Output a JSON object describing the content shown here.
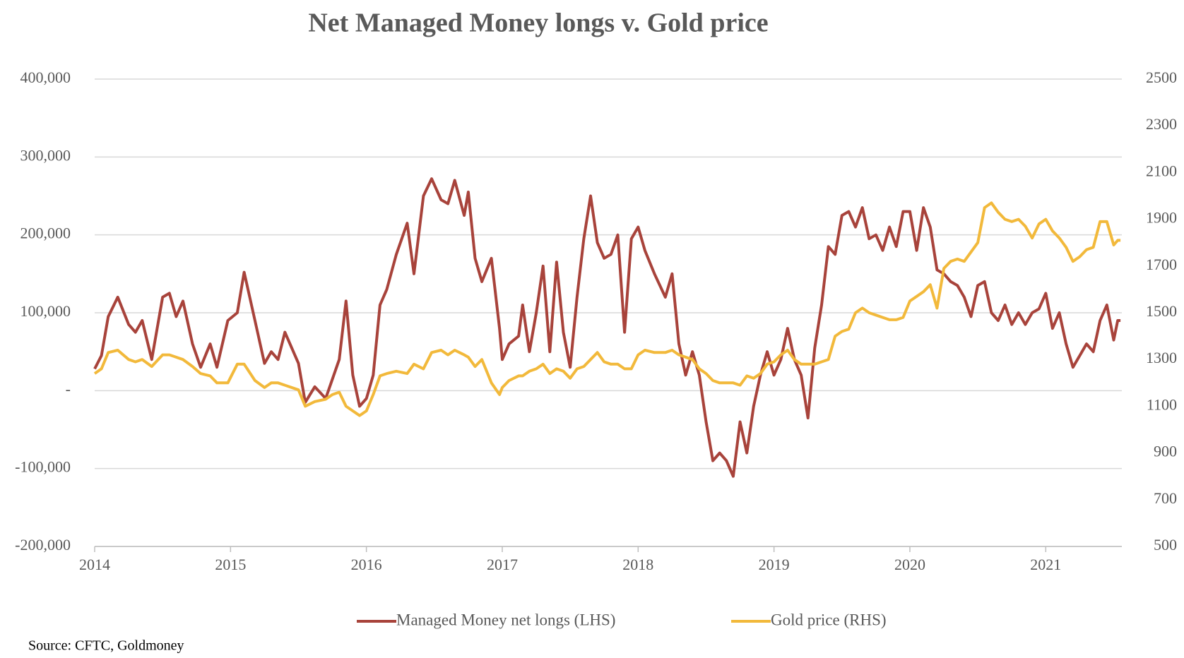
{
  "chart_data": {
    "type": "line",
    "title": "Net Managed Money longs v. Gold price",
    "source": "Source: CFTC, Goldmoney",
    "x": [
      2014,
      2014.05,
      2014.1,
      2014.17,
      2014.25,
      2014.3,
      2014.35,
      2014.42,
      2014.5,
      2014.55,
      2014.6,
      2014.65,
      2014.72,
      2014.78,
      2014.85,
      2014.9,
      2014.98,
      2015.05,
      2015.1,
      2015.18,
      2015.25,
      2015.3,
      2015.35,
      2015.4,
      2015.5,
      2015.55,
      2015.62,
      2015.7,
      2015.75,
      2015.8,
      2015.85,
      2015.9,
      2015.95,
      2016,
      2016.05,
      2016.1,
      2016.15,
      2016.22,
      2016.3,
      2016.35,
      2016.42,
      2016.48,
      2016.55,
      2016.6,
      2016.65,
      2016.72,
      2016.75,
      2016.8,
      2016.85,
      2016.92,
      2016.98,
      2017,
      2017.05,
      2017.12,
      2017.15,
      2017.2,
      2017.25,
      2017.3,
      2017.35,
      2017.4,
      2017.45,
      2017.5,
      2017.55,
      2017.6,
      2017.65,
      2017.7,
      2017.75,
      2017.8,
      2017.85,
      2017.9,
      2017.95,
      2018,
      2018.05,
      2018.12,
      2018.2,
      2018.25,
      2018.3,
      2018.35,
      2018.4,
      2018.45,
      2018.5,
      2018.55,
      2018.6,
      2018.65,
      2018.7,
      2018.75,
      2018.8,
      2018.85,
      2018.9,
      2018.95,
      2019,
      2019.05,
      2019.1,
      2019.15,
      2019.2,
      2019.25,
      2019.3,
      2019.35,
      2019.4,
      2019.45,
      2019.5,
      2019.55,
      2019.6,
      2019.65,
      2019.7,
      2019.75,
      2019.8,
      2019.85,
      2019.9,
      2019.95,
      2020,
      2020.05,
      2020.1,
      2020.15,
      2020.2,
      2020.25,
      2020.3,
      2020.35,
      2020.4,
      2020.45,
      2020.5,
      2020.55,
      2020.6,
      2020.65,
      2020.7,
      2020.75,
      2020.8,
      2020.85,
      2020.9,
      2020.95,
      2021,
      2021.05,
      2021.1,
      2021.15,
      2021.2,
      2021.25,
      2021.3,
      2021.35,
      2021.4,
      2021.45,
      2021.5,
      2021.53,
      2021.55
    ],
    "series": [
      {
        "name": "Managed Money net longs (LHS)",
        "color": "#a8433b",
        "axis": "y",
        "values": [
          28000,
          45000,
          95000,
          120000,
          85000,
          75000,
          90000,
          40000,
          120000,
          125000,
          95000,
          115000,
          60000,
          30000,
          60000,
          30000,
          90000,
          100000,
          152000,
          90000,
          35000,
          50000,
          40000,
          75000,
          35000,
          -15000,
          5000,
          -10000,
          15000,
          40000,
          115000,
          20000,
          -20000,
          -10000,
          20000,
          110000,
          130000,
          175000,
          215000,
          150000,
          250000,
          272000,
          245000,
          240000,
          270000,
          225000,
          255000,
          170000,
          140000,
          170000,
          80000,
          40000,
          60000,
          70000,
          110000,
          50000,
          100000,
          160000,
          50000,
          165000,
          75000,
          30000,
          120000,
          195000,
          250000,
          190000,
          170000,
          175000,
          200000,
          75000,
          195000,
          210000,
          180000,
          150000,
          120000,
          150000,
          60000,
          20000,
          50000,
          20000,
          -40000,
          -90000,
          -80000,
          -90000,
          -110000,
          -40000,
          -80000,
          -20000,
          20000,
          50000,
          20000,
          40000,
          80000,
          40000,
          20000,
          -35000,
          55000,
          110000,
          185000,
          175000,
          225000,
          230000,
          210000,
          235000,
          195000,
          200000,
          180000,
          210000,
          185000,
          230000,
          230000,
          180000,
          235000,
          210000,
          155000,
          150000,
          140000,
          135000,
          120000,
          95000,
          135000,
          140000,
          100000,
          90000,
          110000,
          85000,
          100000,
          85000,
          100000,
          105000,
          125000,
          80000,
          100000,
          60000,
          30000,
          45000,
          60000,
          50000,
          90000,
          110000,
          65000,
          90000,
          90000
        ]
      },
      {
        "name": "Gold price (RHS)",
        "color": "#f2b93b",
        "axis": "y2",
        "values": [
          1240,
          1260,
          1330,
          1340,
          1300,
          1290,
          1300,
          1270,
          1320,
          1320,
          1310,
          1300,
          1270,
          1240,
          1230,
          1200,
          1200,
          1280,
          1280,
          1210,
          1180,
          1200,
          1200,
          1190,
          1170,
          1100,
          1120,
          1130,
          1150,
          1160,
          1100,
          1080,
          1060,
          1080,
          1150,
          1230,
          1240,
          1250,
          1240,
          1280,
          1260,
          1330,
          1340,
          1320,
          1340,
          1320,
          1310,
          1270,
          1300,
          1200,
          1150,
          1180,
          1210,
          1230,
          1230,
          1250,
          1260,
          1280,
          1240,
          1260,
          1250,
          1220,
          1260,
          1270,
          1300,
          1330,
          1290,
          1280,
          1280,
          1260,
          1260,
          1320,
          1340,
          1330,
          1330,
          1340,
          1320,
          1310,
          1300,
          1260,
          1240,
          1210,
          1200,
          1200,
          1200,
          1190,
          1230,
          1220,
          1240,
          1280,
          1290,
          1320,
          1340,
          1300,
          1280,
          1280,
          1280,
          1290,
          1300,
          1400,
          1420,
          1430,
          1500,
          1520,
          1500,
          1490,
          1480,
          1470,
          1470,
          1480,
          1550,
          1570,
          1590,
          1620,
          1520,
          1690,
          1720,
          1730,
          1720,
          1760,
          1800,
          1950,
          1970,
          1930,
          1900,
          1890,
          1900,
          1870,
          1820,
          1880,
          1900,
          1850,
          1820,
          1780,
          1720,
          1740,
          1770,
          1780,
          1890,
          1890,
          1790,
          1810,
          1810
        ]
      }
    ],
    "xlim": [
      2014,
      2021.56
    ],
    "xticks": [
      2014,
      2015,
      2016,
      2017,
      2018,
      2019,
      2020,
      2021
    ],
    "ylim": [
      -200000,
      400000
    ],
    "yticks": [
      {
        "value": -200000,
        "label": "-200,000"
      },
      {
        "value": -100000,
        "label": "-100,000"
      },
      {
        "value": 0,
        "label": "-"
      },
      {
        "value": 100000,
        "label": "100,000"
      },
      {
        "value": 200000,
        "label": "200,000"
      },
      {
        "value": 300000,
        "label": "300,000"
      },
      {
        "value": 400000,
        "label": "400,000"
      }
    ],
    "y2lim": [
      500,
      2500
    ],
    "y2ticks": [
      500,
      700,
      900,
      1100,
      1300,
      1500,
      1700,
      1900,
      2100,
      2300,
      2500
    ],
    "grid": true,
    "legend": "bottom"
  }
}
